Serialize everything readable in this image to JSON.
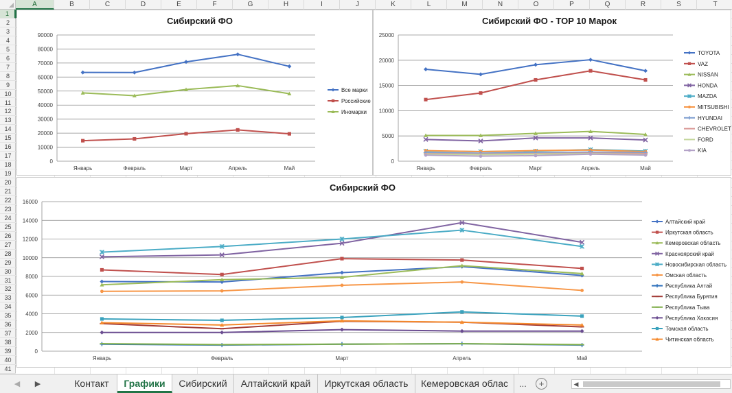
{
  "sheet": {
    "selected_cell": "A1",
    "columns": [
      "A",
      "B",
      "C",
      "D",
      "E",
      "F",
      "G",
      "H",
      "I",
      "J",
      "K",
      "L",
      "M",
      "N",
      "O",
      "P",
      "Q",
      "R",
      "S",
      "T"
    ],
    "rows": [
      "1",
      "2",
      "3",
      "4",
      "5",
      "6",
      "7",
      "8",
      "9",
      "10",
      "11",
      "12",
      "13",
      "14",
      "15",
      "16",
      "17",
      "18",
      "19",
      "20",
      "21",
      "22",
      "23",
      "24",
      "25",
      "26",
      "27",
      "28",
      "29",
      "30",
      "31",
      "32",
      "33",
      "34",
      "35",
      "36",
      "37",
      "38",
      "39",
      "40",
      "41"
    ]
  },
  "tabs": {
    "nav_prev": "◀",
    "nav_next": "▶",
    "items": [
      {
        "label": "Контакт",
        "active": false
      },
      {
        "label": "Графики",
        "active": true
      },
      {
        "label": "Сибирский",
        "active": false
      },
      {
        "label": "Алтайский край",
        "active": false
      },
      {
        "label": "Иркутская область",
        "active": false
      },
      {
        "label": "Кемеровская облас",
        "active": false
      }
    ],
    "more": "...",
    "add_label": "+",
    "scroll_left": "◀"
  },
  "chart_data": [
    {
      "type": "line",
      "title": "Сибирский ФО",
      "categories": [
        "Январь",
        "Февраль",
        "Март",
        "Апрель",
        "Май"
      ],
      "ylim": [
        0,
        90000
      ],
      "yticks": [
        "0",
        "10000",
        "20000",
        "30000",
        "40000",
        "50000",
        "60000",
        "70000",
        "80000",
        "90000"
      ],
      "grid": true,
      "legend": "right",
      "series": [
        {
          "name": "Все марки",
          "values": [
            63300,
            63200,
            70800,
            76200,
            67600
          ],
          "color": "#4472c4",
          "marker": "diamond"
        },
        {
          "name": "Российские",
          "values": [
            14600,
            15900,
            19600,
            22300,
            19500
          ],
          "color": "#c0504d",
          "marker": "square"
        },
        {
          "name": "Иномарки",
          "values": [
            48700,
            46700,
            51100,
            53900,
            48100
          ],
          "color": "#9bbb59",
          "marker": "triangle"
        }
      ]
    },
    {
      "type": "line",
      "title": "Сибирский ФО - TOP 10 Марок",
      "categories": [
        "Январь",
        "Февраль",
        "Март",
        "Апрель",
        "Май"
      ],
      "ylim": [
        0,
        25000
      ],
      "yticks": [
        "0",
        "5000",
        "10000",
        "15000",
        "20000",
        "25000"
      ],
      "grid": true,
      "legend": "right",
      "series": [
        {
          "name": "TOYOTA",
          "values": [
            18200,
            17200,
            19100,
            20100,
            17900
          ],
          "color": "#4472c4",
          "marker": "diamond"
        },
        {
          "name": "VAZ",
          "values": [
            12200,
            13500,
            16100,
            17900,
            16100
          ],
          "color": "#c0504d",
          "marker": "square"
        },
        {
          "name": "NISSAN",
          "values": [
            5100,
            5100,
            5500,
            5900,
            5300
          ],
          "color": "#9bbb59",
          "marker": "triangle"
        },
        {
          "name": "HONDA",
          "values": [
            4300,
            4000,
            4600,
            4600,
            4200
          ],
          "color": "#8064a2",
          "marker": "x"
        },
        {
          "name": "MAZDA",
          "values": [
            2000,
            1900,
            2000,
            2300,
            2000
          ],
          "color": "#4bacc6",
          "marker": "star"
        },
        {
          "name": "MITSUBISHI",
          "values": [
            2100,
            1900,
            2100,
            2200,
            1900
          ],
          "color": "#f79646",
          "marker": "circle"
        },
        {
          "name": "HYUNDAI",
          "values": [
            1700,
            1600,
            1700,
            1800,
            1700
          ],
          "color": "#7f9fd0",
          "marker": "plus"
        },
        {
          "name": "CHEVROLET",
          "values": [
            1500,
            1400,
            1500,
            1600,
            1500
          ],
          "color": "#d99694",
          "marker": "dash"
        },
        {
          "name": "FORD",
          "values": [
            1400,
            1300,
            1400,
            1500,
            1300
          ],
          "color": "#c3d69b",
          "marker": "dash"
        },
        {
          "name": "KIA",
          "values": [
            1200,
            1000,
            1100,
            1400,
            1200
          ],
          "color": "#b3a2c7",
          "marker": "circle"
        }
      ]
    },
    {
      "type": "line",
      "title": "Сибирский ФО",
      "categories": [
        "Январь",
        "Февраль",
        "Март",
        "Апрель",
        "Май"
      ],
      "ylim": [
        0,
        16000
      ],
      "yticks": [
        "0",
        "2000",
        "4000",
        "6000",
        "8000",
        "10000",
        "12000",
        "14000",
        "16000"
      ],
      "grid": true,
      "legend": "right",
      "series": [
        {
          "name": "Алтайский край",
          "values": [
            7450,
            7400,
            8400,
            9050,
            8100
          ],
          "color": "#4472c4",
          "marker": "diamond"
        },
        {
          "name": "Иркутская область",
          "values": [
            8700,
            8200,
            9900,
            9750,
            8850
          ],
          "color": "#c0504d",
          "marker": "square"
        },
        {
          "name": "Кемеровская область",
          "values": [
            7100,
            7650,
            7900,
            9150,
            8300
          ],
          "color": "#9bbb59",
          "marker": "triangle"
        },
        {
          "name": "Красноярский край",
          "values": [
            10100,
            10300,
            11550,
            13750,
            11650
          ],
          "color": "#8064a2",
          "marker": "x"
        },
        {
          "name": "Новосибирская область",
          "values": [
            10600,
            11200,
            12000,
            12950,
            11200
          ],
          "color": "#4bacc6",
          "marker": "star"
        },
        {
          "name": "Омская область",
          "values": [
            6400,
            6450,
            7050,
            7400,
            6500
          ],
          "color": "#f79646",
          "marker": "circle"
        },
        {
          "name": "Республика Алтай",
          "values": [
            750,
            650,
            750,
            800,
            650
          ],
          "color": "#2c6fbb",
          "marker": "plus"
        },
        {
          "name": "Республика Бурятия",
          "values": [
            2950,
            2400,
            3200,
            3100,
            2600
          ],
          "color": "#a23b37",
          "marker": "dash"
        },
        {
          "name": "Республика Тыва",
          "values": [
            800,
            700,
            750,
            800,
            700
          ],
          "color": "#7fae4a",
          "marker": "dash"
        },
        {
          "name": "Республика Хакасия",
          "values": [
            2000,
            2000,
            2300,
            2150,
            2150
          ],
          "color": "#6a4c90",
          "marker": "diamond"
        },
        {
          "name": "Томская область",
          "values": [
            3450,
            3300,
            3600,
            4200,
            3750
          ],
          "color": "#3aa2bd",
          "marker": "square"
        },
        {
          "name": "Читинская область",
          "values": [
            3050,
            2800,
            3250,
            3100,
            2800
          ],
          "color": "#f58a2d",
          "marker": "triangle"
        }
      ]
    }
  ]
}
